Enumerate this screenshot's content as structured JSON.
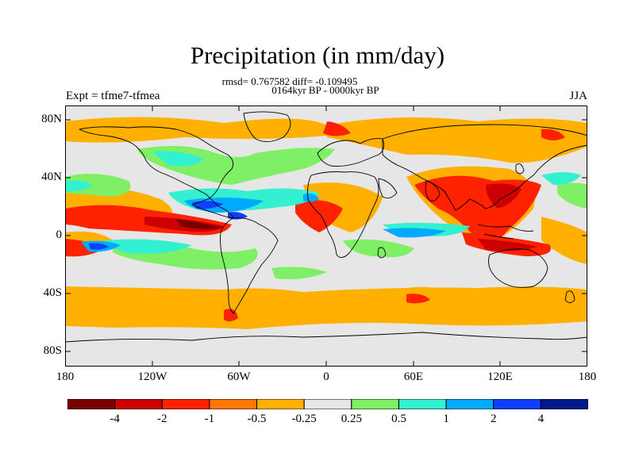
{
  "title": "Precipitation (in mm/day)",
  "stats": "rmsd= 0.767582 diff= -0.109495",
  "period": "0164kyr BP - 0000kyr BP",
  "experiment": "Expt = tfme7-tfmea",
  "season": "JJA",
  "lat_labels": [
    "80N",
    "40N",
    "0",
    "40S",
    "80S"
  ],
  "lon_labels": [
    "180",
    "120W",
    "60W",
    "0",
    "60E",
    "120E",
    "180"
  ],
  "legend": {
    "colors": [
      "#7a0000",
      "#cc0000",
      "#ff2200",
      "#ff7700",
      "#ffb000",
      "#e6e6e6",
      "#7fef66",
      "#33f0d0",
      "#00aaff",
      "#1040ff",
      "#001a8c"
    ],
    "labels": [
      "-4",
      "-2",
      "-1",
      "-0.5",
      "-0.25",
      "0.25",
      "0.5",
      "1",
      "2",
      "4"
    ]
  },
  "colors": {
    "background": "#e6e6e6",
    "coast": "#000000"
  }
}
